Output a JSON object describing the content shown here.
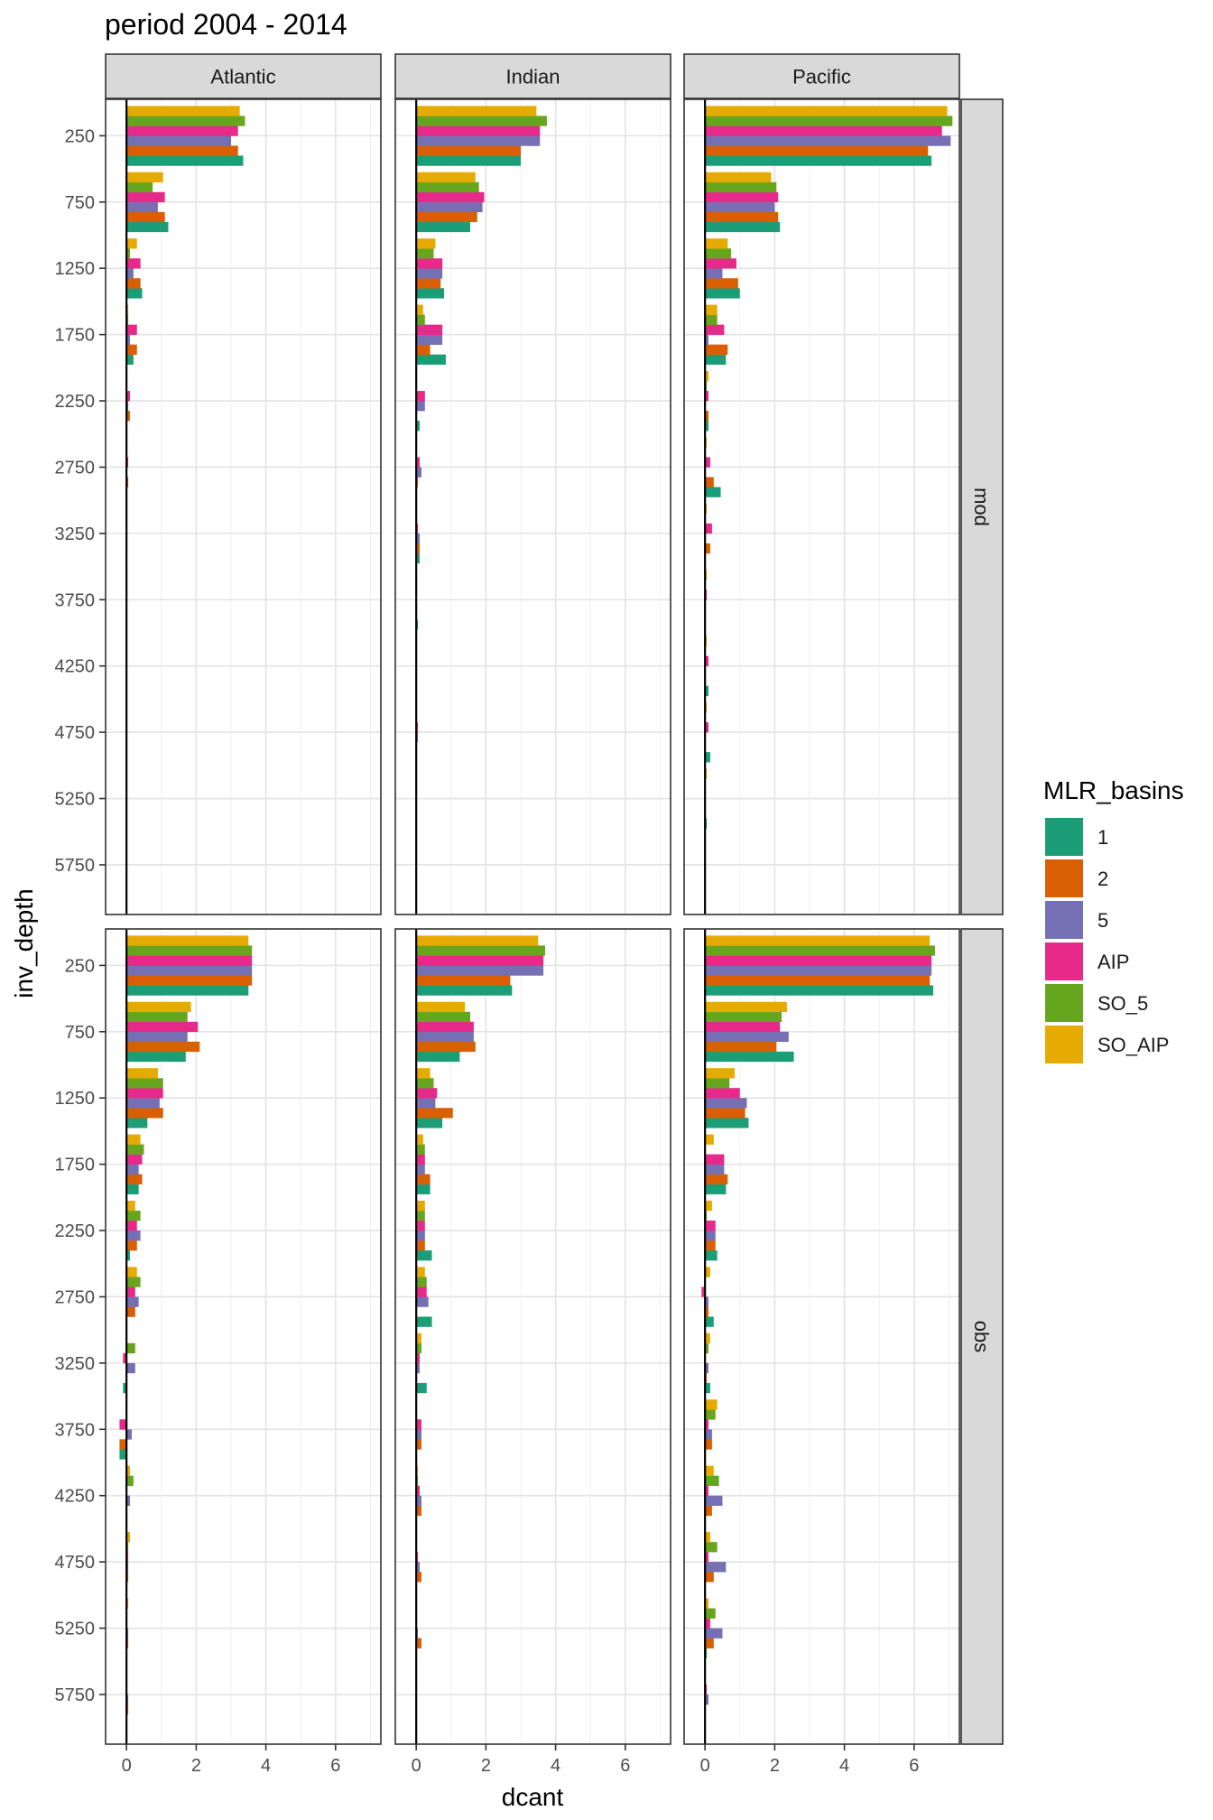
{
  "chart_data": {
    "type": "bar",
    "orientation": "horizontal",
    "title": "period 2004 - 2014",
    "xlabel": "dcant",
    "ylabel": "inv_depth",
    "xlim": [
      -0.6,
      7.3
    ],
    "x_ticks": [
      0,
      2,
      4,
      6
    ],
    "grid": true,
    "legend_title": "MLR_basins",
    "legend_position": "right",
    "column_facets": [
      "Atlantic",
      "Indian",
      "Pacific"
    ],
    "row_facets": [
      "mod",
      "obs"
    ],
    "depths": [
      "250",
      "750",
      "1250",
      "1750",
      "2250",
      "2750",
      "3250",
      "3750",
      "4250",
      "4750",
      "5250",
      "5750"
    ],
    "series": [
      {
        "name": "1",
        "color": "#1B9E77"
      },
      {
        "name": "2",
        "color": "#D95F02"
      },
      {
        "name": "5",
        "color": "#7570B3"
      },
      {
        "name": "AIP",
        "color": "#E7298A"
      },
      {
        "name": "SO_5",
        "color": "#66A61E"
      },
      {
        "name": "SO_AIP",
        "color": "#E6AB02"
      }
    ],
    "panels": [
      {
        "row": "mod",
        "col": "Atlantic",
        "values": [
          [
            3.35,
            3.2,
            3.0,
            3.2,
            3.4,
            3.25
          ],
          [
            1.2,
            1.1,
            0.9,
            1.1,
            0.75,
            1.05
          ],
          [
            0.45,
            0.4,
            0.2,
            0.4,
            0.1,
            0.3
          ],
          [
            0.2,
            0.3,
            0.1,
            0.3,
            0.05,
            0.05
          ],
          [
            0.0,
            0.1,
            0.05,
            0.1,
            0.0,
            0.0
          ],
          [
            0.0,
            0.05,
            0.0,
            0.05,
            0.0,
            0.0
          ],
          [
            -0.02,
            0.0,
            0.0,
            0.02,
            0.0,
            0.0
          ],
          [
            0.0,
            0.0,
            0.02,
            0.0,
            0.0,
            0.0
          ],
          [
            0.0,
            0.0,
            0.0,
            0.0,
            0.0,
            0.0
          ],
          [
            0.0,
            0.0,
            0.0,
            0.0,
            0.0,
            0.0
          ],
          [
            0.0,
            0.0,
            0.0,
            0.0,
            0.0,
            0.0
          ],
          [
            0.0,
            0.0,
            0.0,
            0.0,
            0.0,
            0.0
          ]
        ]
      },
      {
        "row": "mod",
        "col": "Indian",
        "values": [
          [
            3.0,
            3.0,
            3.55,
            3.55,
            3.75,
            3.45
          ],
          [
            1.55,
            1.75,
            1.9,
            1.95,
            1.8,
            1.7
          ],
          [
            0.8,
            0.7,
            0.75,
            0.75,
            0.5,
            0.55
          ],
          [
            0.85,
            0.4,
            0.75,
            0.75,
            0.25,
            0.2
          ],
          [
            0.1,
            0.0,
            0.25,
            0.25,
            0.02,
            0.0
          ],
          [
            0.0,
            0.05,
            0.15,
            0.1,
            0.0,
            0.0
          ],
          [
            0.1,
            0.1,
            0.1,
            0.05,
            0.0,
            0.0
          ],
          [
            0.05,
            0.0,
            0.0,
            0.0,
            0.02,
            0.0
          ],
          [
            0.0,
            0.0,
            0.0,
            0.0,
            0.0,
            0.0
          ],
          [
            0.0,
            0.0,
            0.05,
            0.05,
            0.0,
            0.0
          ],
          [
            0.0,
            0.0,
            0.0,
            0.0,
            0.0,
            0.0
          ],
          [
            0.0,
            0.0,
            0.0,
            0.0,
            0.0,
            0.0
          ]
        ]
      },
      {
        "row": "mod",
        "col": "Pacific",
        "values": [
          [
            6.5,
            6.4,
            7.05,
            6.8,
            7.1,
            6.95
          ],
          [
            2.15,
            2.1,
            2.0,
            2.1,
            2.05,
            1.9
          ],
          [
            1.0,
            0.95,
            0.5,
            0.9,
            0.75,
            0.65
          ],
          [
            0.6,
            0.65,
            0.1,
            0.55,
            0.35,
            0.35
          ],
          [
            0.1,
            0.1,
            0.0,
            0.1,
            0.05,
            0.1
          ],
          [
            0.45,
            0.25,
            0.0,
            0.15,
            0.0,
            0.05
          ],
          [
            0.0,
            0.15,
            0.0,
            0.2,
            0.0,
            0.05
          ],
          [
            0.0,
            0.0,
            0.0,
            0.05,
            0.0,
            0.05
          ],
          [
            0.1,
            0.0,
            0.0,
            0.1,
            0.0,
            0.05
          ],
          [
            0.15,
            0.0,
            0.0,
            0.1,
            0.0,
            0.05
          ],
          [
            0.05,
            0.0,
            0.0,
            0.0,
            0.0,
            0.05
          ],
          [
            0.0,
            0.0,
            0.0,
            0.0,
            0.0,
            0.0
          ]
        ]
      },
      {
        "row": "obs",
        "col": "Atlantic",
        "values": [
          [
            3.5,
            3.6,
            3.6,
            3.6,
            3.6,
            3.5
          ],
          [
            1.7,
            2.1,
            1.75,
            2.05,
            1.75,
            1.85
          ],
          [
            0.6,
            1.05,
            0.95,
            1.05,
            1.05,
            0.9
          ],
          [
            0.35,
            0.45,
            0.35,
            0.45,
            0.5,
            0.4
          ],
          [
            0.1,
            0.3,
            0.4,
            0.3,
            0.4,
            0.25
          ],
          [
            0.0,
            0.25,
            0.35,
            0.25,
            0.4,
            0.3
          ],
          [
            -0.1,
            0.0,
            0.25,
            -0.1,
            0.25,
            0.0
          ],
          [
            -0.2,
            -0.2,
            0.15,
            -0.2,
            0.0,
            0.0
          ],
          [
            0.0,
            0.0,
            0.1,
            0.0,
            0.2,
            0.1
          ],
          [
            0.0,
            0.05,
            0.05,
            0.05,
            0.05,
            0.1
          ],
          [
            0.0,
            0.05,
            0.05,
            0.0,
            0.0,
            0.05
          ],
          [
            0.0,
            0.05,
            0.05,
            0.0,
            0.0,
            0.0
          ]
        ]
      },
      {
        "row": "obs",
        "col": "Indian",
        "values": [
          [
            2.75,
            2.7,
            3.65,
            3.65,
            3.7,
            3.5
          ],
          [
            1.25,
            1.7,
            1.65,
            1.65,
            1.55,
            1.4
          ],
          [
            0.75,
            1.05,
            0.55,
            0.6,
            0.5,
            0.4
          ],
          [
            0.4,
            0.4,
            0.25,
            0.25,
            0.25,
            0.2
          ],
          [
            0.45,
            0.25,
            0.25,
            0.25,
            0.25,
            0.25
          ],
          [
            0.45,
            0.0,
            0.35,
            0.3,
            0.3,
            0.25
          ],
          [
            0.3,
            0.0,
            0.1,
            0.1,
            0.15,
            0.15
          ],
          [
            0.0,
            0.15,
            0.15,
            0.15,
            0.0,
            0.0
          ],
          [
            0.0,
            0.15,
            0.15,
            0.1,
            0.05,
            0.05
          ],
          [
            0.0,
            0.15,
            0.1,
            0.05,
            0.0,
            0.0
          ],
          [
            0.0,
            0.15,
            0.05,
            0.0,
            0.0,
            0.0
          ],
          [
            0.0,
            0.0,
            0.0,
            0.0,
            0.0,
            0.0
          ]
        ]
      },
      {
        "row": "obs",
        "col": "Pacific",
        "values": [
          [
            6.55,
            6.45,
            6.5,
            6.5,
            6.6,
            6.45
          ],
          [
            2.55,
            2.05,
            2.4,
            2.15,
            2.2,
            2.35
          ],
          [
            1.25,
            1.15,
            1.2,
            1.0,
            0.7,
            0.85
          ],
          [
            0.6,
            0.65,
            0.55,
            0.55,
            0.0,
            0.25
          ],
          [
            0.35,
            0.3,
            0.3,
            0.3,
            0.05,
            0.2
          ],
          [
            0.25,
            0.1,
            0.1,
            -0.1,
            0.0,
            0.15
          ],
          [
            0.15,
            0.05,
            0.1,
            0.0,
            0.1,
            0.15
          ],
          [
            0.0,
            0.2,
            0.2,
            0.1,
            0.3,
            0.35
          ],
          [
            0.0,
            0.2,
            0.5,
            0.1,
            0.4,
            0.25
          ],
          [
            0.0,
            0.25,
            0.6,
            0.1,
            0.35,
            0.15
          ],
          [
            0.05,
            0.25,
            0.5,
            0.15,
            0.3,
            0.1
          ],
          [
            0.0,
            0.0,
            0.1,
            0.05,
            0.0,
            0.0
          ]
        ]
      }
    ]
  }
}
